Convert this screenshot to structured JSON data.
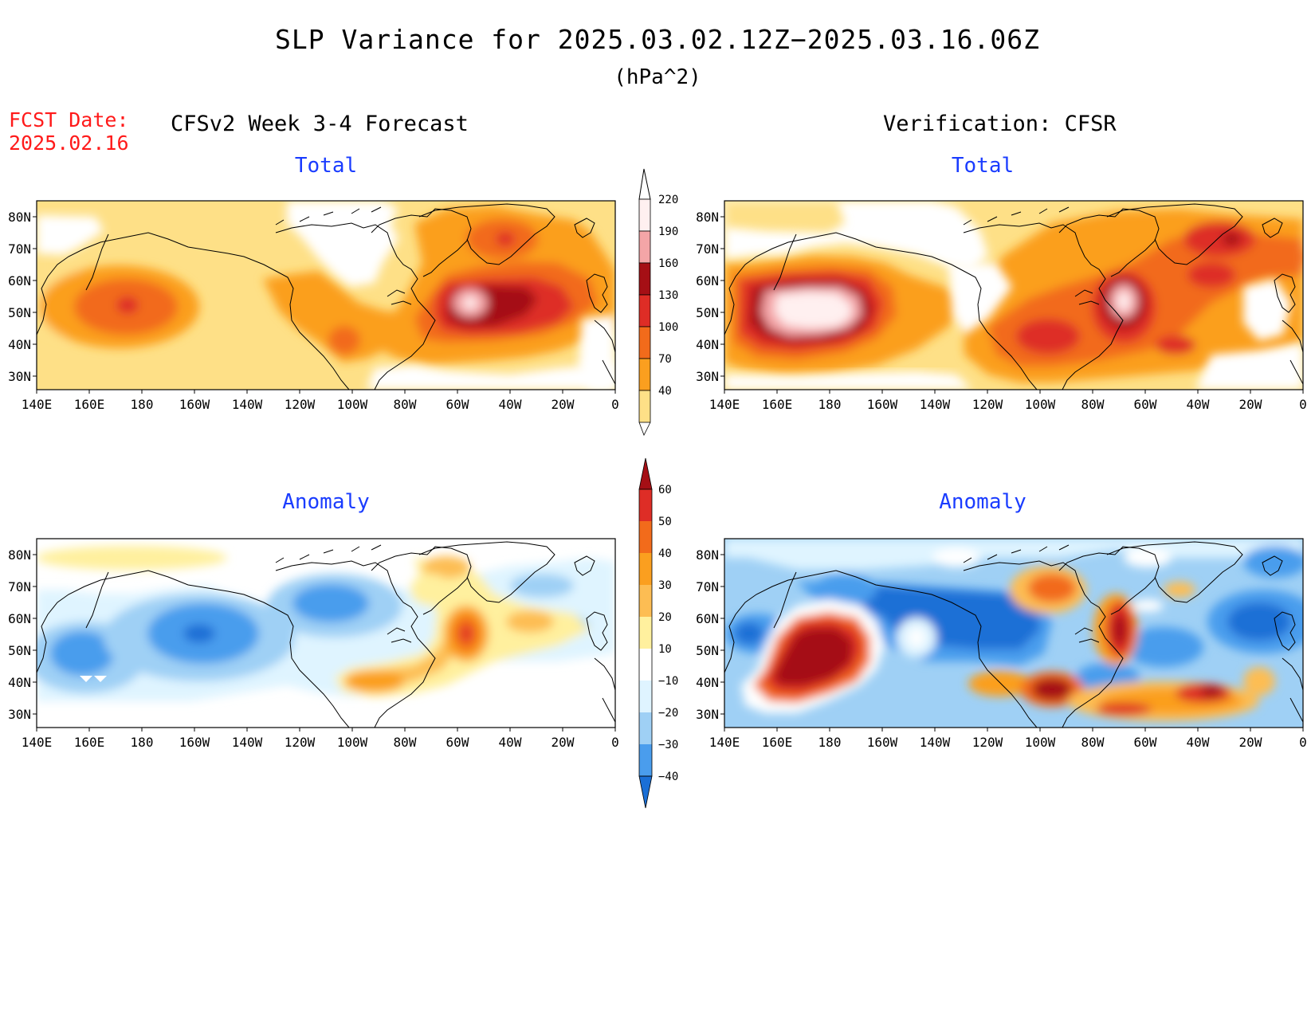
{
  "header": {
    "title": "SLP Variance for 2025.03.02.12Z−2025.03.16.06Z",
    "units": "(hPa^2)",
    "fcst_label": "FCST Date:",
    "fcst_date": "2025.02.16",
    "left_column": "CFSv2 Week 3-4 Forecast",
    "right_column": "Verification: CFSR"
  },
  "panels": {
    "top_left": "Total",
    "top_right": "Total",
    "bottom_left": "Anomaly",
    "bottom_right": "Anomaly"
  },
  "axes": {
    "lat_labels": [
      "80N",
      "70N",
      "60N",
      "50N",
      "40N",
      "30N"
    ],
    "lon_labels": [
      "140E",
      "160E",
      "180",
      "160W",
      "140W",
      "120W",
      "100W",
      "80W",
      "60W",
      "40W",
      "20W",
      "0"
    ]
  },
  "colorbars": {
    "total": {
      "labels": [
        "220",
        "190",
        "160",
        "130",
        "100",
        "70",
        "40"
      ],
      "colors": [
        "#fff0f0",
        "#f4a5a7",
        "#a50f15",
        "#de2d26",
        "#f26b1b",
        "#fb9f1f",
        "#fee087"
      ]
    },
    "anomaly": {
      "labels": [
        "60",
        "50",
        "40",
        "30",
        "20",
        "10",
        "−10",
        "−20",
        "−30",
        "−40"
      ],
      "colors": [
        "#a50f15",
        "#de2d26",
        "#f26b1b",
        "#fb9f1f",
        "#fdbd53",
        "#fff09e",
        "#ffffff",
        "#dff4ff",
        "#9fd0f5",
        "#4a9ded",
        "#1a6fd6"
      ]
    }
  }
}
